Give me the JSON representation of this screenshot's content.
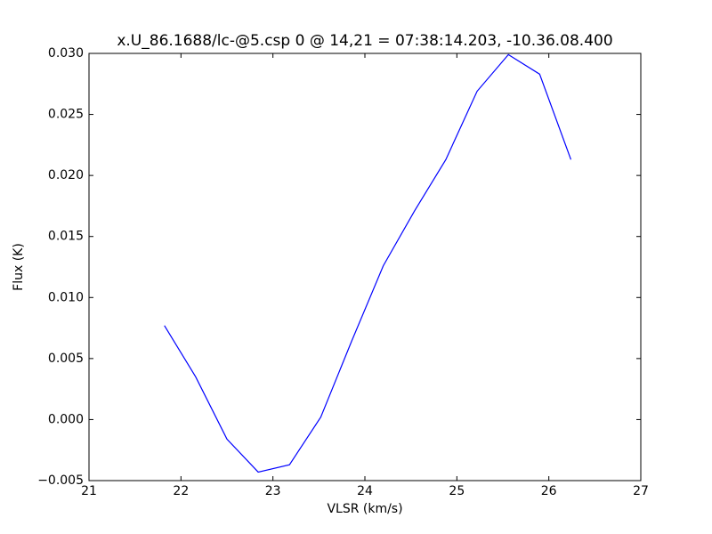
{
  "chart_data": {
    "type": "line",
    "title": "x.U_86.1688/lc-@5.csp 0 @ 14,21 = 07:38:14.203, -10.36.08.400",
    "x_label": "VLSR (km/s)",
    "y_label": "Flux (K)",
    "x": [
      21.82,
      22.16,
      22.5,
      22.84,
      23.18,
      23.52,
      23.86,
      24.2,
      24.54,
      24.88,
      25.22,
      25.56,
      25.9,
      26.24
    ],
    "series": [
      {
        "color": "#0000ff",
        "values": [
          0.0077,
          0.0035,
          -0.0016,
          -0.0043,
          -0.0037,
          0.0002,
          0.0065,
          0.0126,
          0.0171,
          0.0213,
          0.0269,
          0.0299,
          0.0283,
          0.0213
        ]
      }
    ],
    "xlim": [
      21,
      27
    ],
    "xticks": [
      21,
      22,
      23,
      24,
      25,
      26,
      27
    ],
    "ylim": [
      -0.005,
      0.03
    ],
    "yticks": [
      {
        "value": -0.005,
        "label": "−0.005"
      },
      {
        "value": 0,
        "label": "0.000"
      },
      {
        "value": 0.005,
        "label": "0.005"
      },
      {
        "value": 0.01,
        "label": "0.010"
      },
      {
        "value": 0.015,
        "label": "0.015"
      },
      {
        "value": 0.02,
        "label": "0.020"
      },
      {
        "value": 0.025,
        "label": "0.025"
      },
      {
        "value": 0.03,
        "label": "0.030"
      }
    ],
    "grid": false
  }
}
